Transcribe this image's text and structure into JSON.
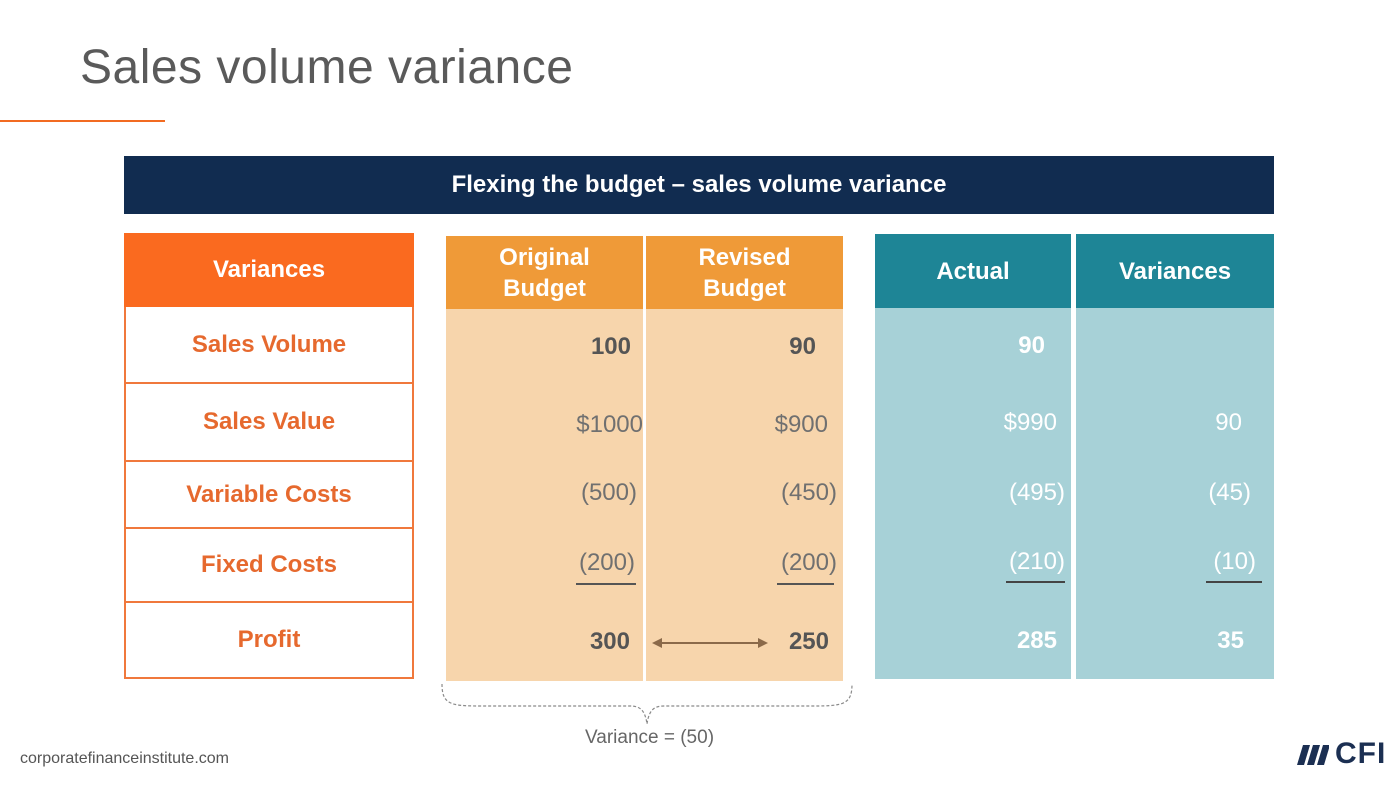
{
  "slide": {
    "title": "Sales volume variance",
    "banner": "Flexing the budget – sales volume variance",
    "footer": "corporatefinanceinstitute.com",
    "variance_note": "Variance = (50)",
    "logo_text": "CFI",
    "logo_icon": "slanted-bars-icon"
  },
  "labels": {
    "header": "Variances",
    "rows": [
      "Sales Volume",
      "Sales Value",
      "Variable Costs",
      "Fixed Costs",
      "Profit"
    ]
  },
  "columns": {
    "original": {
      "header_line1": "Original",
      "header_line2": "Budget",
      "values": [
        "100",
        "$1000",
        "(500)",
        "(200)",
        "300"
      ]
    },
    "revised": {
      "header_line1": "Revised",
      "header_line2": "Budget",
      "values": [
        "90",
        "$900",
        "(450)",
        "(200)",
        "250"
      ]
    },
    "actual": {
      "header": "Actual",
      "values": [
        "90",
        "$990",
        "(495)",
        "(210)",
        "285"
      ]
    },
    "variances": {
      "header": "Variances",
      "values": [
        "",
        "90",
        "(45)",
        "(10)",
        "35"
      ]
    }
  },
  "colors": {
    "navy": "#112c50",
    "orange": "#fa6a1f",
    "budget_orange": "#ef9a38",
    "budget_light": "#f7d5ac",
    "teal": "#1e8596",
    "teal_light": "#a7d1d7"
  }
}
